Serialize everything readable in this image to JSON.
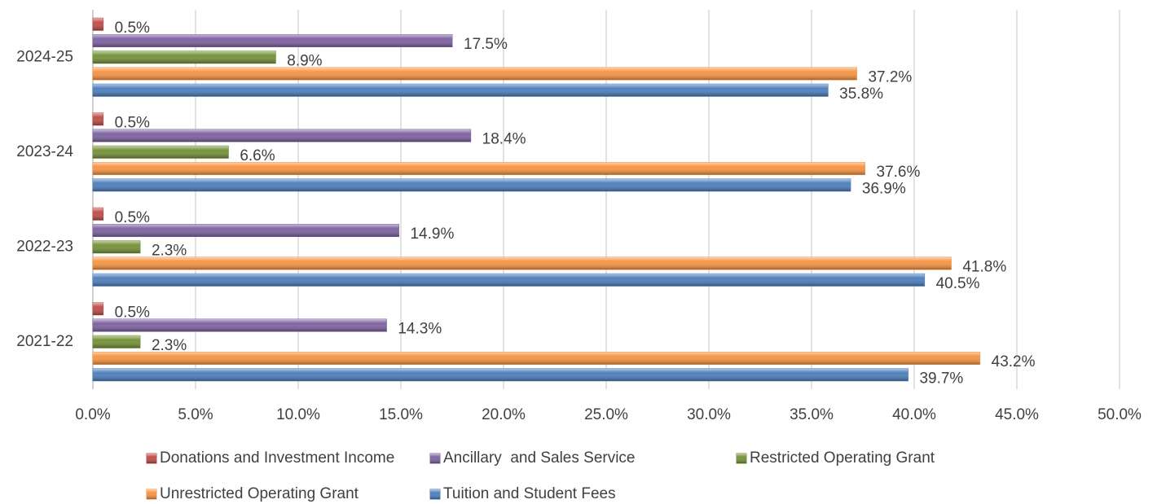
{
  "chart_data": {
    "type": "hbar",
    "categories": [
      "2021-22",
      "2022-23",
      "2023-24",
      "2024-25"
    ],
    "series": [
      {
        "name": "Donations and Investment Income",
        "color": "#c0504d",
        "values": [
          0.5,
          0.5,
          0.5,
          0.5
        ],
        "value_labels": [
          "0.5%",
          "0.5%",
          "0.5%",
          "0.5%"
        ]
      },
      {
        "name": "Ancillary  and Sales Service",
        "color": "#8064a2",
        "values": [
          14.3,
          14.9,
          18.4,
          17.5
        ],
        "value_labels": [
          "14.3%",
          "14.9%",
          "18.4%",
          "17.5%"
        ]
      },
      {
        "name": "Restricted Operating Grant",
        "color": "#77933c",
        "values": [
          2.3,
          2.3,
          6.6,
          8.9
        ],
        "value_labels": [
          "2.3%",
          "2.3%",
          "6.6%",
          "8.9%"
        ]
      },
      {
        "name": "Unrestricted Operating Grant",
        "color": "#f79646",
        "values": [
          43.2,
          41.8,
          37.6,
          37.2
        ],
        "value_labels": [
          "43.2%",
          "41.8%",
          "37.6%",
          "37.2%"
        ]
      },
      {
        "name": "Tuition and Student Fees",
        "color": "#4f81bd",
        "values": [
          39.7,
          40.5,
          36.9,
          35.8
        ],
        "value_labels": [
          "39.7%",
          "40.5%",
          "36.9%",
          "35.8%"
        ]
      }
    ],
    "xlim": [
      0,
      50
    ],
    "xticks": [
      {
        "value": 0,
        "label": "0.0%"
      },
      {
        "value": 5,
        "label": "5.0%"
      },
      {
        "value": 10,
        "label": "10.0%"
      },
      {
        "value": 15,
        "label": "15.0%"
      },
      {
        "value": 20,
        "label": "20.0%"
      },
      {
        "value": 25,
        "label": "25.0%"
      },
      {
        "value": 30,
        "label": "30.0%"
      },
      {
        "value": 35,
        "label": "35.0%"
      },
      {
        "value": 40,
        "label": "40.0%"
      },
      {
        "value": 45,
        "label": "45.0%"
      },
      {
        "value": 50,
        "label": "50.0%"
      }
    ],
    "grid": true,
    "legend": "bottom"
  }
}
